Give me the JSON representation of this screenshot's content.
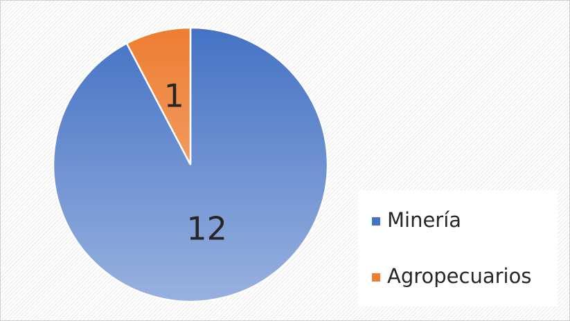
{
  "chart_data": {
    "type": "pie",
    "categories": [
      "Minería",
      "Agropecuarios"
    ],
    "values": [
      12,
      1
    ],
    "colors": [
      "#4472c4",
      "#ed7d31"
    ],
    "legend": "right"
  }
}
